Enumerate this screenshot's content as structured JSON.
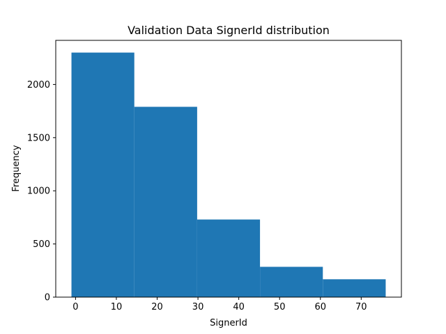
{
  "chart_data": {
    "type": "bar",
    "title": "Validation Data SignerId distribution",
    "xlabel": "SignerId",
    "ylabel": "Frequency",
    "bin_edges": [
      -1,
      14.4,
      29.8,
      45.2,
      60.6,
      76
    ],
    "values": [
      2300,
      1790,
      730,
      285,
      168
    ],
    "xlim": [
      -4.85,
      79.85
    ],
    "ylim": [
      0,
      2415
    ],
    "xticks": [
      0,
      10,
      20,
      30,
      40,
      50,
      60,
      70
    ],
    "yticks": [
      0,
      500,
      1000,
      1500,
      2000
    ],
    "bar_color": "#1f77b4",
    "grid": false,
    "legend": "none"
  }
}
